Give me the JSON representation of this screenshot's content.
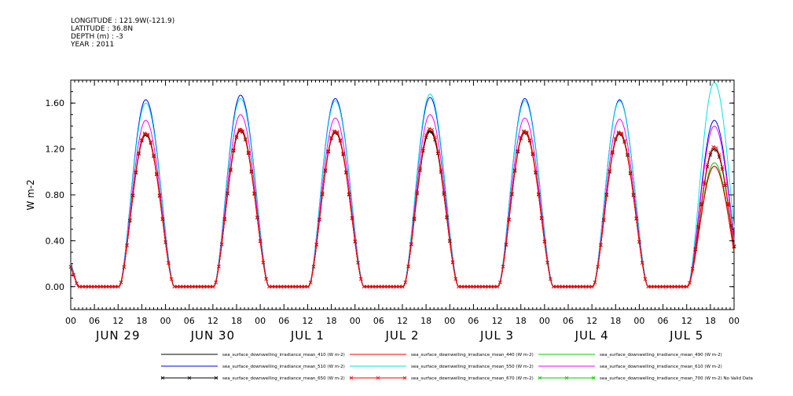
{
  "header": {
    "lines": [
      "LONGITUDE : 121.9W(-121.9)",
      "LATITUDE : 36.8N",
      "DEPTH (m) : -3",
      "YEAR : 2011"
    ]
  },
  "chart_data": {
    "type": "line",
    "title": "",
    "xlabel": "",
    "ylabel": "W m-2",
    "ylim": [
      -0.2,
      1.8
    ],
    "yticks": [
      0.0,
      0.4,
      0.8,
      1.2,
      1.6
    ],
    "ytick_labels": [
      "0.00",
      "0.40",
      "0.80",
      "1.20",
      "1.60"
    ],
    "xlim_hours": [
      0,
      168
    ],
    "x_tick_labels": [
      "00",
      "06",
      "12",
      "18",
      "00",
      "06",
      "12",
      "18",
      "00",
      "06",
      "12",
      "18",
      "00",
      "06",
      "12",
      "18",
      "00",
      "06",
      "12",
      "18",
      "00",
      "06",
      "12",
      "18",
      "00",
      "06",
      "12",
      "18",
      "00"
    ],
    "day_labels": [
      "JUN 29",
      "JUN 30",
      "JUL  1",
      "JUL  2",
      "JUL  3",
      "JUL  4",
      "JUL  5"
    ],
    "grid": false,
    "legend_position": "bottom",
    "daily_peak_hour": 19,
    "series": [
      {
        "name": "sea_surface_downwelling_irradiance_mean_410 (W m-2)",
        "color": "#000000",
        "marker": "none",
        "daily_peak": [
          1.32,
          1.36,
          1.34,
          1.35,
          1.34,
          1.33,
          1.05
        ]
      },
      {
        "name": "sea_surface_downwelling_irradiance_mean_440 (W m-2)",
        "color": "#ff0000",
        "marker": "none",
        "daily_peak": [
          1.33,
          1.38,
          1.35,
          1.38,
          1.35,
          1.34,
          1.05
        ]
      },
      {
        "name": "sea_surface_downwelling_irradiance_mean_490 (W m-2)",
        "color": "#00cc00",
        "marker": "none",
        "daily_peak": [
          1.34,
          1.38,
          1.35,
          1.38,
          1.36,
          1.35,
          1.08
        ]
      },
      {
        "name": "sea_surface_downwelling_irradiance_mean_510 (W m-2)",
        "color": "#0000ff",
        "marker": "none",
        "daily_peak": [
          1.63,
          1.67,
          1.64,
          1.65,
          1.64,
          1.63,
          1.45
        ]
      },
      {
        "name": "sea_surface_downwelling_irradiance_mean_550 (W m-2)",
        "color": "#00e5e5",
        "marker": "none",
        "daily_peak": [
          1.6,
          1.64,
          1.62,
          1.68,
          1.62,
          1.62,
          1.78
        ]
      },
      {
        "name": "sea_surface_downwelling_irradiance_mean_610 (W m-2)",
        "color": "#ff00ff",
        "marker": "none",
        "daily_peak": [
          1.45,
          1.5,
          1.47,
          1.5,
          1.47,
          1.46,
          1.4
        ]
      },
      {
        "name": "sea_surface_downwelling_irradiance_mean_650 (W m-2)",
        "color": "#000000",
        "marker": "x",
        "daily_peak": [
          1.33,
          1.36,
          1.35,
          1.36,
          1.35,
          1.34,
          1.2
        ]
      },
      {
        "name": "sea_surface_downwelling_irradiance_mean_670 (W m-2)",
        "color": "#ff0000",
        "marker": "x",
        "daily_peak": [
          1.34,
          1.37,
          1.36,
          1.38,
          1.36,
          1.35,
          1.22
        ]
      },
      {
        "name": "sea_surface_downwelling_irradiance_mean_700 (W m-2) No Valid Data",
        "color": "#00cc00",
        "marker": "x",
        "daily_peak": []
      }
    ]
  }
}
